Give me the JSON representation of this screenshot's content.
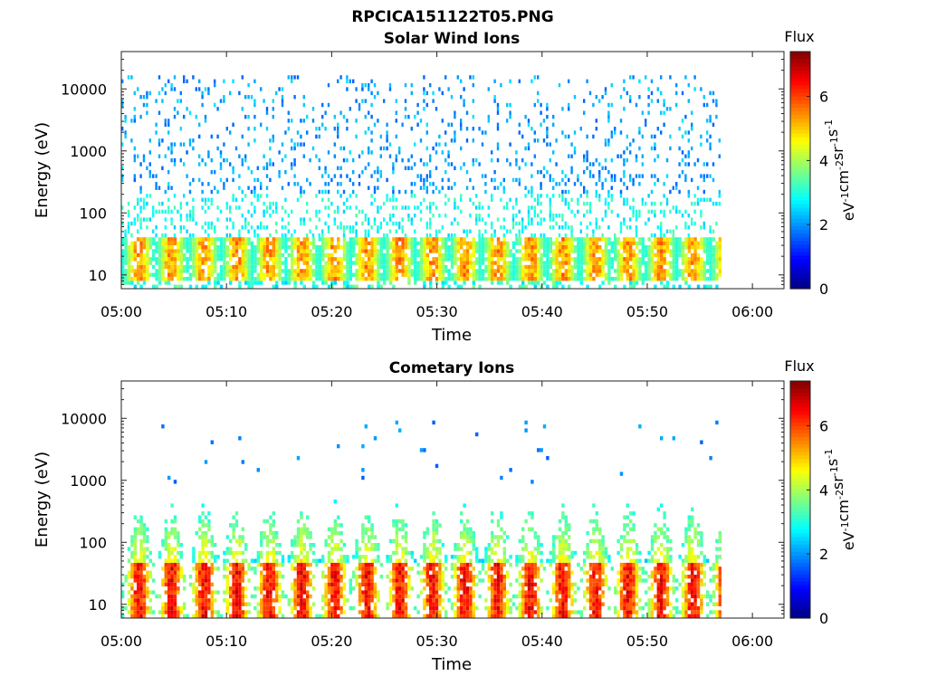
{
  "figure_title": "RPCICA151122T05.PNG",
  "colorbar": {
    "title": "Flux",
    "label": "eV-1cm-2sr-1s-1",
    "label_parts": [
      "eV",
      "-1",
      "cm",
      "-2",
      "sr",
      "-1",
      "s",
      "-1"
    ],
    "range": [
      0,
      7.4
    ],
    "ticks": [
      0,
      2,
      4,
      6
    ],
    "colormap": "jet"
  },
  "chart_data": [
    {
      "type": "heatmap",
      "title": "Solar Wind Ions",
      "xlabel": "Time",
      "ylabel": "Energy (eV)",
      "yscale": "log",
      "ylim": [
        6,
        40000
      ],
      "xlim": [
        "05:00",
        "06:03"
      ],
      "xticks": [
        "05:00",
        "05:10",
        "05:20",
        "05:30",
        "05:40",
        "05:50",
        "06:00"
      ],
      "yticks": [
        10,
        100,
        1000,
        10000
      ],
      "ytick_labels": [
        "10",
        "100",
        "1000",
        "10000"
      ],
      "data_end": "05:57",
      "sweep_period_min": 3.1,
      "low_energy_band_eV": [
        10,
        40
      ],
      "band_peak_flux": 6.0,
      "band_base_flux": 3.0,
      "sparse_counts_energy_eV": [
        40,
        15000
      ],
      "sparse_counts_flux": [
        1.6,
        2.6
      ]
    },
    {
      "type": "heatmap",
      "title": "Cometary Ions",
      "xlabel": "Time",
      "ylabel": "Energy (eV)",
      "yscale": "log",
      "ylim": [
        6,
        40000
      ],
      "xlim": [
        "05:00",
        "06:03"
      ],
      "xticks": [
        "05:00",
        "05:10",
        "05:20",
        "05:30",
        "05:40",
        "05:50",
        "06:00"
      ],
      "yticks": [
        10,
        100,
        1000,
        10000
      ],
      "ytick_labels": [
        "10",
        "100",
        "1000",
        "10000"
      ],
      "data_end": "05:57",
      "sweep_period_min": 3.1,
      "low_energy_band_eV": [
        10,
        45
      ],
      "band_peak_flux": 7.0,
      "plume_top_eV": 500,
      "sparse_counts_energy_eV": [
        800,
        9000
      ],
      "sparse_counts_flux": [
        1.6,
        2.2
      ]
    }
  ]
}
